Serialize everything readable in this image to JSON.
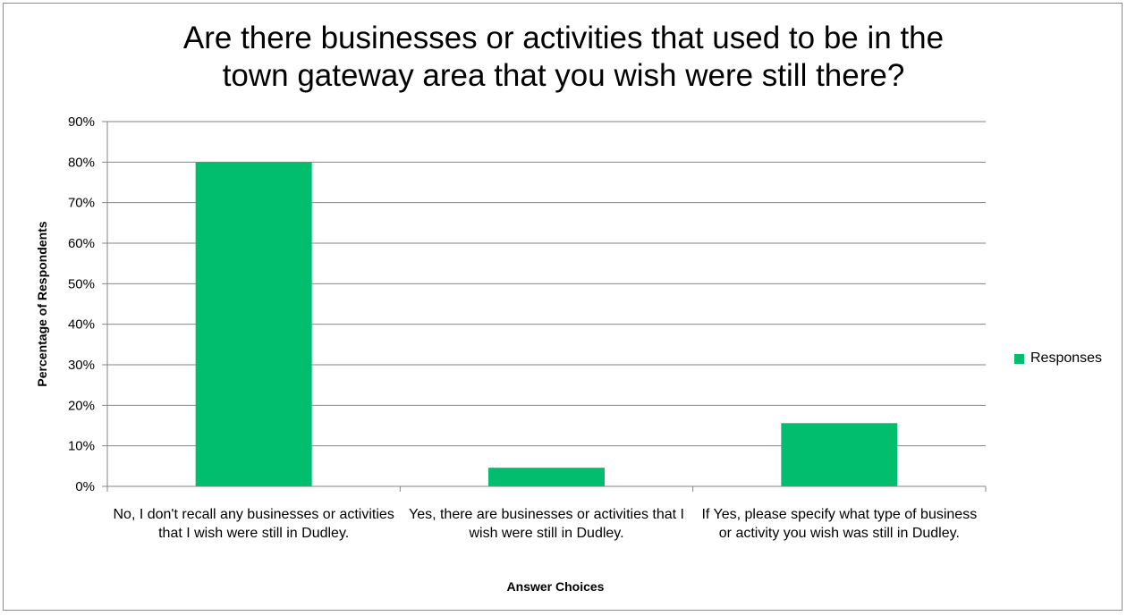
{
  "chart_data": {
    "type": "bar",
    "title": "Are there businesses or activities that used to be in the\ntown gateway area that you wish were still there?",
    "xlabel": "Answer Choices",
    "ylabel": "Percentage of Respondents",
    "categories": [
      "No, I don't recall any businesses or activities that I wish were still in Dudley.",
      "Yes, there are businesses or activities that I wish were still in Dudley.",
      "If Yes, please specify what type of business or activity you wish was still in Dudley."
    ],
    "series": [
      {
        "name": "Responses",
        "values": [
          80,
          4.6,
          15.6
        ],
        "color": "#00be6e"
      }
    ],
    "ylim": [
      0,
      90
    ],
    "yticks": [
      0,
      10,
      20,
      30,
      40,
      50,
      60,
      70,
      80,
      90
    ],
    "ytick_labels": [
      "0%",
      "10%",
      "20%",
      "30%",
      "40%",
      "50%",
      "60%",
      "70%",
      "80%",
      "90%"
    ],
    "grid": true,
    "legend_position": "right"
  }
}
